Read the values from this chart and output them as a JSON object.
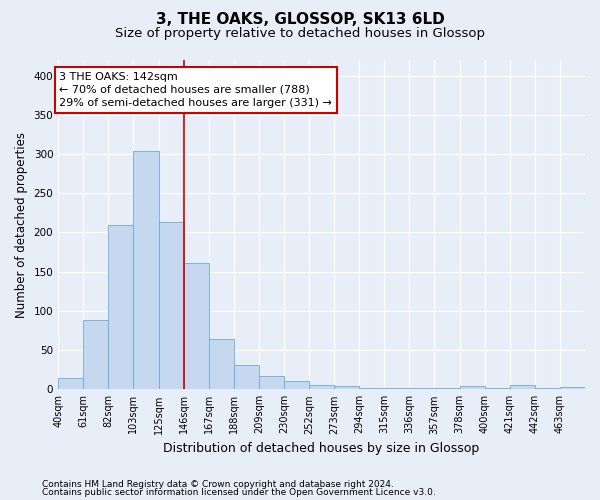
{
  "title": "3, THE OAKS, GLOSSOP, SK13 6LD",
  "subtitle": "Size of property relative to detached houses in Glossop",
  "xlabel": "Distribution of detached houses by size in Glossop",
  "ylabel": "Number of detached properties",
  "footnote1": "Contains HM Land Registry data © Crown copyright and database right 2024.",
  "footnote2": "Contains public sector information licensed under the Open Government Licence v3.0.",
  "categories": [
    "40sqm",
    "61sqm",
    "82sqm",
    "103sqm",
    "125sqm",
    "146sqm",
    "167sqm",
    "188sqm",
    "209sqm",
    "230sqm",
    "252sqm",
    "273sqm",
    "294sqm",
    "315sqm",
    "336sqm",
    "357sqm",
    "378sqm",
    "400sqm",
    "421sqm",
    "442sqm",
    "463sqm"
  ],
  "values": [
    15,
    88,
    210,
    304,
    213,
    161,
    64,
    31,
    17,
    10,
    6,
    4,
    2,
    2,
    2,
    2,
    4,
    2,
    5,
    2,
    3
  ],
  "bar_color": "#c5d8f0",
  "bar_edge_color": "#6aaed6",
  "vline_color": "#cc0000",
  "annotation_text": "3 THE OAKS: 142sqm\n← 70% of detached houses are smaller (788)\n29% of semi-detached houses are larger (331) →",
  "annotation_box_color": "#ffffff",
  "annotation_border_color": "#cc0000",
  "ylim": [
    0,
    420
  ],
  "yticks": [
    0,
    50,
    100,
    150,
    200,
    250,
    300,
    350,
    400
  ],
  "figure_bg": "#e8eef8",
  "plot_bg": "#e8eef8",
  "grid_color": "#ffffff",
  "title_fontsize": 11,
  "subtitle_fontsize": 9.5,
  "xlabel_fontsize": 9,
  "ylabel_fontsize": 8.5,
  "tick_fontsize": 7,
  "annot_fontsize": 8,
  "footnote_fontsize": 6.5
}
